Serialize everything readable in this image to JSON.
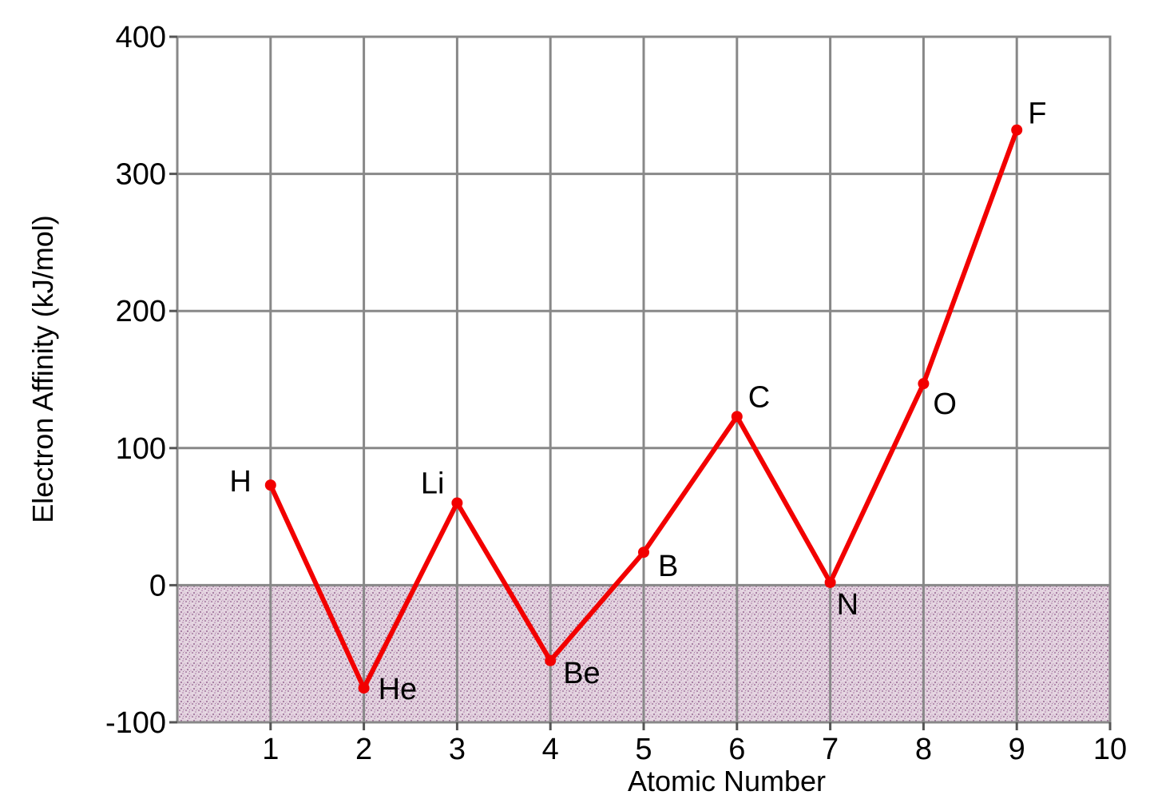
{
  "chart_data": {
    "type": "line",
    "title": "",
    "xlabel": "Atomic Number",
    "ylabel": "Electron Affinity (kJ/mol)",
    "xlim": [
      0,
      10
    ],
    "ylim": [
      -100,
      400
    ],
    "x_ticks": [
      "1",
      "2",
      "3",
      "4",
      "5",
      "6",
      "7",
      "8",
      "9",
      "10"
    ],
    "y_ticks": [
      "-100",
      "0",
      "100",
      "200",
      "300",
      "400"
    ],
    "grid": true,
    "negative_region_shaded": true,
    "colors": {
      "line": "#f20000",
      "grid": "#888888",
      "negative_region": "#d9c7d6"
    },
    "series": [
      {
        "points": [
          {
            "x": 1,
            "y": 73,
            "label": "H"
          },
          {
            "x": 2,
            "y": -75,
            "label": "He"
          },
          {
            "x": 3,
            "y": 60,
            "label": "Li"
          },
          {
            "x": 4,
            "y": -55,
            "label": "Be"
          },
          {
            "x": 5,
            "y": 24,
            "label": "B"
          },
          {
            "x": 6,
            "y": 123,
            "label": "C"
          },
          {
            "x": 7,
            "y": 2,
            "label": "N"
          },
          {
            "x": 8,
            "y": 147,
            "label": "O"
          },
          {
            "x": 9,
            "y": 332,
            "label": "F"
          }
        ]
      }
    ]
  }
}
